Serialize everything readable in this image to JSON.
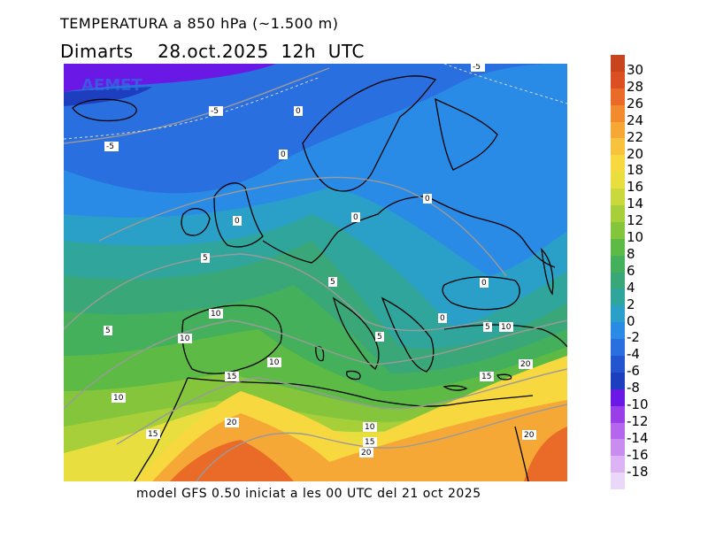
{
  "title_line1": "TEMPERATURA a 850 hPa (~1.500 m)",
  "title_line2": "Dimarts    28.oct.2025  12h  UTC",
  "footer": "model GFS 0.50 iniciat a les 00 UTC del 21 oct 2025",
  "watermark": "AEMET",
  "colorbar": [
    {
      "label": "30",
      "color": "#c8441c"
    },
    {
      "label": "28",
      "color": "#dc4f22"
    },
    {
      "label": "26",
      "color": "#ea6a27"
    },
    {
      "label": "24",
      "color": "#f28a2e"
    },
    {
      "label": "22",
      "color": "#f6a836"
    },
    {
      "label": "20",
      "color": "#f8c23c"
    },
    {
      "label": "18",
      "color": "#f7d83f"
    },
    {
      "label": "16",
      "color": "#e8de40"
    },
    {
      "label": "14",
      "color": "#c9d93d"
    },
    {
      "label": "12",
      "color": "#a6cf3a"
    },
    {
      "label": "10",
      "color": "#84c53c"
    },
    {
      "label": "8",
      "color": "#5cba45"
    },
    {
      "label": "6",
      "color": "#44b05c"
    },
    {
      "label": "4",
      "color": "#3aa778"
    },
    {
      "label": "2",
      "color": "#2fa59c"
    },
    {
      "label": "0",
      "color": "#2aa0c8"
    },
    {
      "label": "-2",
      "color": "#2a8be6"
    },
    {
      "label": "-4",
      "color": "#2a6fe0"
    },
    {
      "label": "-6",
      "color": "#2255cf"
    },
    {
      "label": "-8",
      "color": "#1d3fbf"
    },
    {
      "label": "-10",
      "color": "#6a18e6"
    },
    {
      "label": "-12",
      "color": "#9a3fe8"
    },
    {
      "label": "-14",
      "color": "#b466ec"
    },
    {
      "label": "-16",
      "color": "#c98df0"
    },
    {
      "label": "-18",
      "color": "#dcb4f5"
    },
    {
      "label": "",
      "color": "#ead8f8"
    }
  ],
  "contour_labels": [
    "-5",
    "-5",
    "-5",
    "0",
    "0",
    "0",
    "0",
    "0",
    "0",
    "0",
    "5",
    "5",
    "5",
    "5",
    "5",
    "10",
    "10",
    "10",
    "10",
    "10",
    "10",
    "15",
    "15",
    "15",
    "15",
    "20",
    "20",
    "20",
    "20"
  ]
}
